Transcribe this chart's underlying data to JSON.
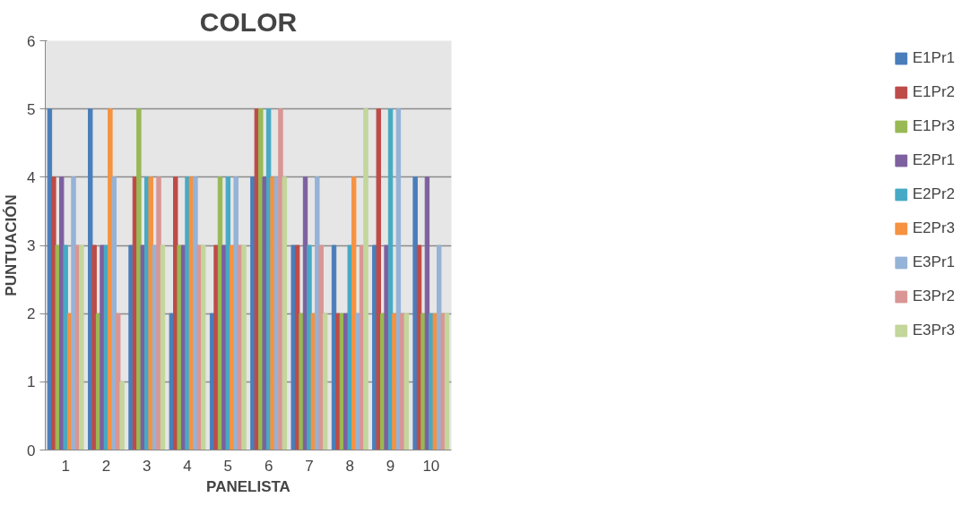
{
  "chart_data": {
    "type": "bar",
    "title": "COLOR",
    "xlabel": "PANELISTA",
    "ylabel": "PUNTUACIÓN",
    "categories": [
      "1",
      "2",
      "3",
      "4",
      "5",
      "6",
      "7",
      "8",
      "9",
      "10"
    ],
    "series": [
      {
        "name": "E1Pr1",
        "color": "#4a7ebb",
        "values": [
          5,
          5,
          3,
          2,
          2,
          4,
          3,
          3,
          3,
          4
        ]
      },
      {
        "name": "E1Pr2",
        "color": "#be4b48",
        "values": [
          4,
          3,
          4,
          4,
          3,
          5,
          3,
          2,
          5,
          3
        ]
      },
      {
        "name": "E1Pr3",
        "color": "#98b954",
        "values": [
          3,
          2,
          5,
          3,
          4,
          5,
          2,
          2,
          2,
          2
        ]
      },
      {
        "name": "E2Pr1",
        "color": "#7d60a0",
        "values": [
          4,
          3,
          3,
          3,
          3,
          4,
          4,
          2,
          3,
          4
        ]
      },
      {
        "name": "E2Pr2",
        "color": "#46aac5",
        "values": [
          3,
          3,
          4,
          4,
          4,
          5,
          3,
          3,
          5,
          2
        ]
      },
      {
        "name": "E2Pr3",
        "color": "#f69240",
        "values": [
          2,
          5,
          4,
          4,
          3,
          4,
          2,
          4,
          2,
          2
        ]
      },
      {
        "name": "E3Pr1",
        "color": "#95b3d7",
        "values": [
          4,
          4,
          3,
          4,
          4,
          4,
          4,
          2,
          5,
          3
        ]
      },
      {
        "name": "E3Pr2",
        "color": "#d99694",
        "values": [
          3,
          2,
          4,
          3,
          3,
          5,
          3,
          3,
          2,
          2
        ]
      },
      {
        "name": "E3Pr3",
        "color": "#c3d69b",
        "values": [
          3,
          1,
          3,
          3,
          3,
          4,
          2,
          5,
          2,
          2
        ]
      }
    ],
    "ylim": [
      0,
      6
    ],
    "yticks": [
      0,
      1,
      2,
      3,
      4,
      5,
      6
    ],
    "grid": "y",
    "legend": "right"
  }
}
